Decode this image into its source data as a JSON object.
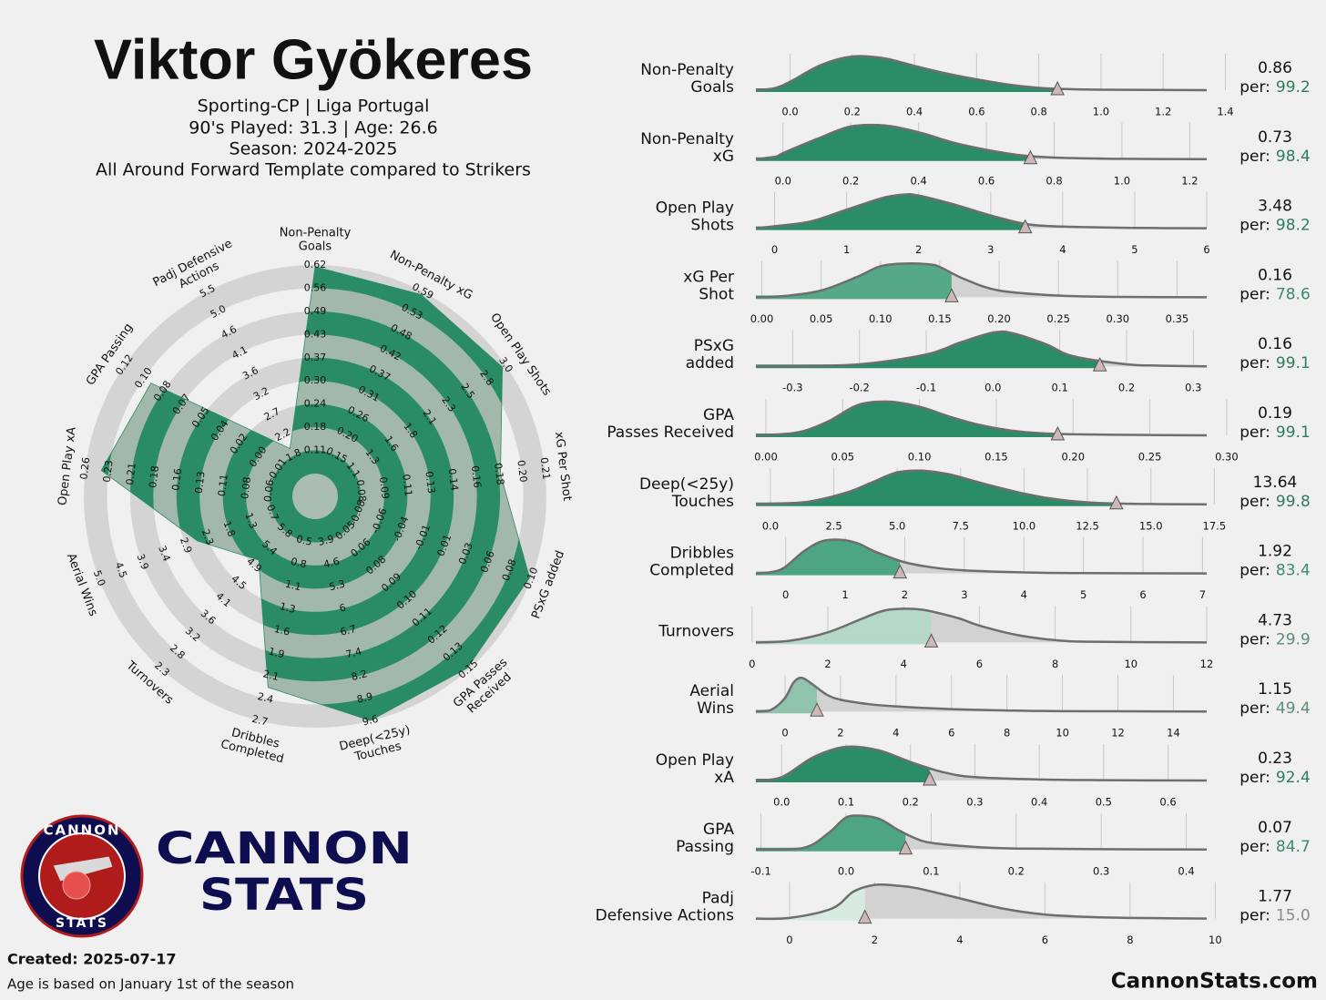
{
  "header": {
    "title": "Viktor Gyökeres",
    "subtitle": [
      "Sporting-CP | Liga Portugal",
      "90's Played: 31.3 | Age: 26.6",
      "Season: 2024-2025",
      "All Around Forward Template compared to Strikers"
    ]
  },
  "logo": {
    "ring_top": "CANNON",
    "ring_bottom": "STATS",
    "name_1": "CANNON",
    "name_2": "STATS"
  },
  "footer": {
    "created": "Created: 2025-07-17",
    "note": "Age is based on January 1st of the season",
    "site": "CannonStats.com"
  },
  "percentile_prefix": "per:",
  "chart_data": [
    {
      "type": "radar",
      "categories": [
        [
          "Non-Penalty",
          "Goals"
        ],
        [
          "Non-Penalty xG"
        ],
        [
          "Open Play Shots"
        ],
        [
          "xG Per Shot"
        ],
        [
          "PSxG added"
        ],
        [
          "GPA Passes",
          "Received"
        ],
        [
          "Deep(<25y)",
          "Touches"
        ],
        [
          "Dribbles",
          "Completed"
        ],
        [
          "Turnovers"
        ],
        [
          "Aerial Wins"
        ],
        [
          "Open Play xA"
        ],
        [
          "GPA Passing"
        ],
        [
          "Padj Defensive",
          "Actions"
        ]
      ],
      "values": [
        99.2,
        98.4,
        98.2,
        78.6,
        99.1,
        99.1,
        99.8,
        83.4,
        29.9,
        49.4,
        92.4,
        84.7,
        15.0
      ],
      "rlim": [
        0,
        100
      ],
      "color": "#2a8c66",
      "ticks": [
        [
          0.11,
          0.18,
          0.24,
          {
            "value": 0.3,
            "label": "0.30"
          },
          0.37,
          0.43,
          0.49,
          0.56,
          0.62
        ],
        [
          0.15,
          {
            "value": 0.2,
            "label": "0.20"
          },
          0.26,
          0.31,
          0.37,
          0.42,
          0.48,
          0.53,
          0.59
        ],
        [
          1.1,
          1.3,
          1.6,
          1.8,
          2.1,
          2.3,
          2.5,
          2.8,
          {
            "value": 3,
            "label": "3.0"
          }
        ],
        [
          0.08,
          0.09,
          0.11,
          0.13,
          0.14,
          0.16,
          0.18,
          {
            "value": 0.2,
            "label": "0.20"
          },
          0.21
        ],
        [
          -0.08,
          -0.06,
          -0.04,
          -0.01,
          0.01,
          0.03,
          0.06,
          0.08,
          {
            "value": 0.1,
            "label": "0.10"
          }
        ],
        [
          0.05,
          0.06,
          0.08,
          0.09,
          {
            "value": 0.1,
            "label": "0.10"
          },
          0.11,
          0.12,
          0.13,
          0.15
        ],
        [
          3.9,
          4.6,
          5.3,
          6.0,
          6.7,
          7.4,
          8.2,
          8.9,
          9.6
        ],
        [
          0.5,
          0.8,
          1.1,
          1.3,
          1.6,
          1.9,
          2.1,
          2.4,
          2.7
        ],
        [
          5.8,
          5.4,
          4.9,
          4.5,
          4.1,
          3.6,
          3.2,
          2.8,
          2.3
        ],
        [
          0.7,
          1.3,
          1.8,
          2.3,
          2.9,
          3.4,
          3.9,
          4.5,
          {
            "value": 5,
            "label": "5.0"
          }
        ],
        [
          0.06,
          0.08,
          0.11,
          0.13,
          0.16,
          0.18,
          0.21,
          0.23,
          0.26
        ],
        [
          -0.01,
          {
            "value": 0,
            "label": "0.00"
          },
          0.02,
          0.04,
          0.05,
          0.07,
          0.08,
          {
            "value": 0.1,
            "label": "0.10"
          },
          0.12
        ],
        [
          1.8,
          2.2,
          2.7,
          3.2,
          3.6,
          4.1,
          4.6,
          {
            "value": 5,
            "label": "5.0"
          },
          5.5
        ]
      ]
    },
    {
      "type": "density",
      "label": [
        "Non-Penalty",
        "Goals"
      ],
      "value": 0.86,
      "percentile": 99.2,
      "color": "#2a8d68",
      "percentile_color": "#2e7d5b",
      "xlim": [
        -0.11,
        1.34
      ],
      "ylim": [
        0,
        1
      ],
      "xticks": [
        {
          "value": 0,
          "label": "0.0"
        },
        0.2,
        0.4,
        0.6,
        0.8,
        {
          "value": 1,
          "label": "1.0"
        },
        1.2,
        1.4
      ],
      "x": [
        -0.11,
        -0.05,
        0,
        0.1,
        0.2,
        0.3,
        0.4,
        0.5,
        0.6,
        0.7,
        0.8,
        0.9,
        1.0,
        1.34
      ],
      "density": [
        0,
        0.06,
        0.25,
        0.75,
        1,
        0.95,
        0.72,
        0.5,
        0.32,
        0.17,
        0.07,
        0.03,
        0.015,
        0
      ]
    },
    {
      "type": "density",
      "label": [
        "Non-Penalty",
        "xG"
      ],
      "value": 0.73,
      "percentile": 98.4,
      "color": "#2a8d68",
      "percentile_color": "#2e7d5b",
      "xlim": [
        -0.08,
        1.25
      ],
      "ylim": [
        0,
        1
      ],
      "xticks": [
        {
          "value": 0,
          "label": "0.0"
        },
        0.2,
        0.4,
        0.6,
        0.8,
        {
          "value": 1,
          "label": "1.0"
        },
        1.2
      ],
      "x": [
        -0.08,
        -0.02,
        0,
        0.1,
        0.2,
        0.3,
        0.4,
        0.5,
        0.6,
        0.7,
        0.8,
        1.0,
        1.25
      ],
      "density": [
        0,
        0.08,
        0.18,
        0.6,
        0.97,
        1,
        0.8,
        0.5,
        0.28,
        0.12,
        0.05,
        0.01,
        0
      ]
    },
    {
      "type": "density",
      "label": [
        "Open Play",
        "Shots"
      ],
      "value": 3.48,
      "percentile": 98.2,
      "color": "#2a8d68",
      "percentile_color": "#2e7d5b",
      "xlim": [
        -0.26,
        6
      ],
      "ylim": [
        0,
        1
      ],
      "xticks": [
        0,
        1,
        2,
        3,
        4,
        5,
        6
      ],
      "x": [
        -0.26,
        0,
        0.5,
        1,
        1.5,
        1.8,
        2,
        2.5,
        3,
        3.5,
        4,
        5,
        6
      ],
      "density": [
        0,
        0.06,
        0.2,
        0.55,
        0.9,
        1,
        0.97,
        0.7,
        0.38,
        0.12,
        0.05,
        0.01,
        0
      ]
    },
    {
      "type": "density",
      "label": [
        "xG Per",
        "Shot"
      ],
      "value": 0.16,
      "percentile": 78.6,
      "color": "#55a888",
      "percentile_color": "#3d8a68",
      "xlim": [
        -0.005,
        0.375
      ],
      "ylim": [
        0,
        1
      ],
      "xticks": [
        {
          "value": 0,
          "label": "0.00"
        },
        0.05,
        {
          "value": 0.1,
          "label": "0.10"
        },
        0.15,
        {
          "value": 0.2,
          "label": "0.20"
        },
        0.25,
        {
          "value": 0.3,
          "label": "0.30"
        },
        0.35
      ],
      "x": [
        -0.005,
        0.02,
        0.05,
        0.08,
        0.1,
        0.12,
        0.14,
        0.15,
        0.17,
        0.2,
        0.25,
        0.3,
        0.375
      ],
      "density": [
        0,
        0.04,
        0.2,
        0.6,
        0.92,
        1,
        0.98,
        0.9,
        0.55,
        0.2,
        0.05,
        0.01,
        0
      ]
    },
    {
      "type": "density",
      "label": [
        "PSxG",
        "added"
      ],
      "value": 0.16,
      "percentile": 99.1,
      "color": "#2a8d68",
      "percentile_color": "#2e7d5b",
      "xlim": [
        -0.355,
        0.32
      ],
      "ylim": [
        0,
        1
      ],
      "xticks": [
        -0.3,
        -0.2,
        -0.1,
        {
          "value": 0,
          "label": "0.0"
        },
        0.1,
        0.2,
        0.3
      ],
      "x": [
        -0.355,
        -0.3,
        -0.2,
        -0.1,
        -0.05,
        0,
        0.03,
        0.08,
        0.12,
        0.2,
        0.25,
        0.32
      ],
      "density": [
        0,
        0.01,
        0.06,
        0.35,
        0.7,
        1,
        0.98,
        0.65,
        0.3,
        0.06,
        0.02,
        0
      ]
    },
    {
      "type": "density",
      "label": [
        "GPA",
        "Passes Received"
      ],
      "value": 0.19,
      "percentile": 99.1,
      "color": "#2a8d68",
      "percentile_color": "#2e7d5b",
      "xlim": [
        -0.0065,
        0.287
      ],
      "ylim": [
        0,
        1
      ],
      "xticks": [
        {
          "value": 0,
          "label": "0.00"
        },
        0.05,
        {
          "value": 0.1,
          "label": "0.10"
        },
        0.15,
        {
          "value": 0.2,
          "label": "0.20"
        },
        0.25,
        {
          "value": 0.3,
          "label": "0.30"
        }
      ],
      "x": [
        -0.0065,
        0.02,
        0.04,
        0.06,
        0.08,
        0.1,
        0.12,
        0.14,
        0.16,
        0.18,
        0.2,
        0.25,
        0.287
      ],
      "density": [
        0,
        0.08,
        0.4,
        0.9,
        1,
        0.85,
        0.55,
        0.3,
        0.14,
        0.06,
        0.03,
        0.01,
        0
      ]
    },
    {
      "type": "density",
      "label": [
        "Deep(<25y)",
        "Touches"
      ],
      "value": 13.64,
      "percentile": 99.8,
      "color": "#2a8d68",
      "percentile_color": "#2e7d5b",
      "xlim": [
        -0.57,
        17.2
      ],
      "ylim": [
        0,
        1
      ],
      "xticks": [
        {
          "value": 0,
          "label": "0.0"
        },
        2.5,
        {
          "value": 5,
          "label": "5.0"
        },
        7.5,
        {
          "value": 10,
          "label": "10.0"
        },
        12.5,
        {
          "value": 15,
          "label": "15.0"
        },
        17.5
      ],
      "x": [
        -0.57,
        0,
        1.5,
        3,
        4,
        5,
        6,
        7,
        8,
        9,
        10,
        11,
        12,
        13,
        15,
        17.2
      ],
      "density": [
        0,
        0.02,
        0.08,
        0.35,
        0.65,
        0.95,
        1,
        0.9,
        0.7,
        0.5,
        0.32,
        0.18,
        0.09,
        0.04,
        0.01,
        0
      ]
    },
    {
      "type": "density",
      "label": [
        "Dribbles",
        "Completed"
      ],
      "value": 1.92,
      "percentile": 83.4,
      "color": "#4da583",
      "percentile_color": "#3d8a68",
      "xlim": [
        -0.5,
        7.07
      ],
      "ylim": [
        0,
        1
      ],
      "xticks": [
        0,
        1,
        2,
        3,
        4,
        5,
        6,
        7
      ],
      "x": [
        -0.5,
        -0.2,
        0,
        0.3,
        0.6,
        0.9,
        1.2,
        1.5,
        2,
        2.5,
        3,
        4,
        5,
        7.07
      ],
      "density": [
        0,
        0.05,
        0.2,
        0.65,
        0.95,
        1,
        0.9,
        0.65,
        0.33,
        0.17,
        0.09,
        0.03,
        0.01,
        0
      ]
    },
    {
      "type": "density",
      "label": [
        "Turnovers"
      ],
      "value": 4.73,
      "percentile": 29.9,
      "color": "#b5d8c8",
      "percentile_color": "#5a8f75",
      "xlim": [
        0.1,
        12
      ],
      "ylim": [
        0,
        1
      ],
      "xticks": [
        0,
        2,
        4,
        6,
        8,
        10,
        12
      ],
      "x": [
        0.1,
        1,
        2,
        3,
        3.5,
        4,
        4.5,
        5,
        5.5,
        6,
        7,
        8,
        9,
        12
      ],
      "density": [
        0,
        0.05,
        0.3,
        0.75,
        0.95,
        1,
        0.97,
        0.85,
        0.7,
        0.5,
        0.22,
        0.07,
        0.02,
        0
      ]
    },
    {
      "type": "density",
      "label": [
        "Aerial",
        "Wins"
      ],
      "value": 1.15,
      "percentile": 49.4,
      "color": "#8fc3ac",
      "percentile_color": "#5a8f75",
      "xlim": [
        -1.05,
        15.2
      ],
      "ylim": [
        0,
        1
      ],
      "xticks": [
        0,
        2,
        4,
        6,
        8,
        10,
        12,
        14
      ],
      "x": [
        -1.05,
        -0.5,
        0,
        0.3,
        0.6,
        1,
        1.5,
        2,
        3,
        4,
        6,
        8,
        10,
        15.2
      ],
      "density": [
        0,
        0.05,
        0.4,
        0.85,
        1,
        0.8,
        0.5,
        0.35,
        0.22,
        0.15,
        0.07,
        0.03,
        0.01,
        0
      ]
    },
    {
      "type": "density",
      "label": [
        "Open Play",
        "xA"
      ],
      "value": 0.23,
      "percentile": 92.4,
      "color": "#2a8d68",
      "percentile_color": "#2e7d5b",
      "xlim": [
        -0.04,
        0.66
      ],
      "ylim": [
        0,
        1
      ],
      "xticks": [
        {
          "value": 0,
          "label": "0.0"
        },
        0.1,
        0.2,
        0.3,
        0.4,
        0.5,
        0.6
      ],
      "x": [
        -0.04,
        0,
        0.05,
        0.1,
        0.15,
        0.2,
        0.25,
        0.3,
        0.4,
        0.5,
        0.66
      ],
      "density": [
        0,
        0.1,
        0.7,
        1,
        0.9,
        0.55,
        0.25,
        0.1,
        0.03,
        0.01,
        0
      ]
    },
    {
      "type": "density",
      "label": [
        "GPA",
        "Passing"
      ],
      "value": 0.07,
      "percentile": 84.7,
      "color": "#4da583",
      "percentile_color": "#3d8a68",
      "xlim": [
        -0.106,
        0.424
      ],
      "ylim": [
        0,
        1
      ],
      "xticks": [
        -0.1,
        {
          "value": 0,
          "label": "0.0"
        },
        0.1,
        0.2,
        0.3,
        0.4
      ],
      "x": [
        -0.106,
        -0.05,
        -0.02,
        0,
        0.02,
        0.04,
        0.06,
        0.08,
        0.1,
        0.15,
        0.2,
        0.3,
        0.424
      ],
      "density": [
        0,
        0.05,
        0.5,
        0.95,
        1,
        0.9,
        0.6,
        0.35,
        0.2,
        0.08,
        0.03,
        0.01,
        0
      ]
    },
    {
      "type": "density",
      "label": [
        "Padj",
        "Defensive Actions"
      ],
      "value": 1.77,
      "percentile": 15.0,
      "percentile_label": "15.0",
      "color": "#d8ebe2",
      "percentile_color": "#8a8a8a",
      "xlim": [
        -0.79,
        9.8
      ],
      "ylim": [
        0,
        1
      ],
      "xticks": [
        0,
        2,
        4,
        6,
        8,
        10
      ],
      "x": [
        -0.79,
        0,
        1,
        1.5,
        2,
        2.5,
        3,
        4,
        5,
        6,
        7,
        8,
        9.8
      ],
      "density": [
        0,
        0.02,
        0.3,
        0.8,
        1,
        0.98,
        0.9,
        0.6,
        0.3,
        0.12,
        0.05,
        0.02,
        0
      ]
    }
  ]
}
